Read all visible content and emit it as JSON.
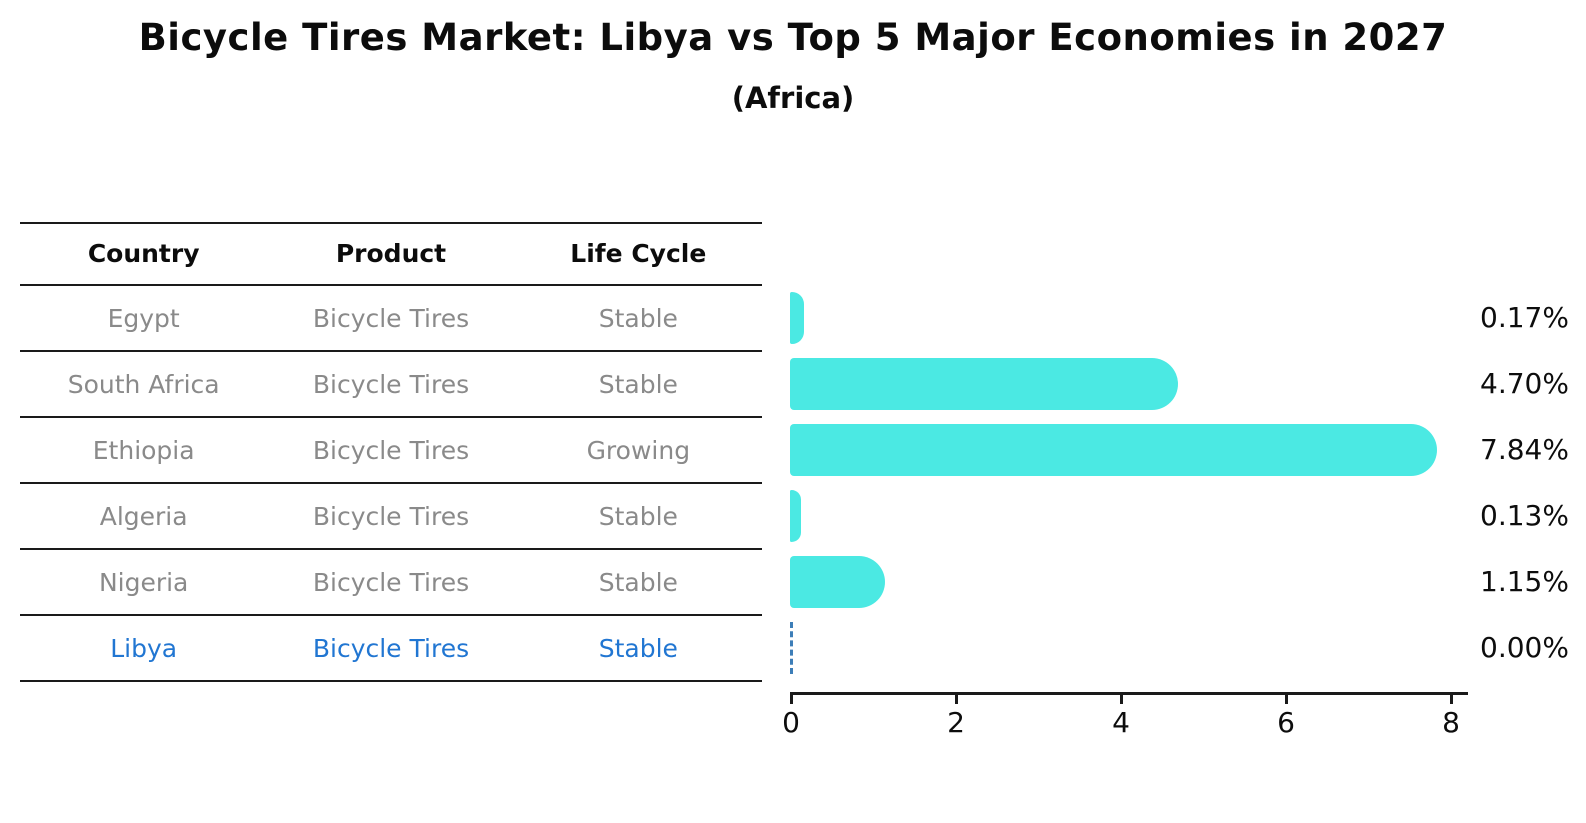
{
  "title": "Bicycle Tires Market: Libya vs Top 5 Major Economies in 2027",
  "subtitle": "(Africa)",
  "table": {
    "headers": {
      "country": "Country",
      "product": "Product",
      "life_cycle": "Life Cycle"
    },
    "rows": [
      {
        "country": "Egypt",
        "product": "Bicycle Tires",
        "life_cycle": "Stable"
      },
      {
        "country": "South Africa",
        "product": "Bicycle Tires",
        "life_cycle": "Stable"
      },
      {
        "country": "Ethiopia",
        "product": "Bicycle Tires",
        "life_cycle": "Growing"
      },
      {
        "country": "Algeria",
        "product": "Bicycle Tires",
        "life_cycle": "Stable"
      },
      {
        "country": "Nigeria",
        "product": "Bicycle Tires",
        "life_cycle": "Stable"
      },
      {
        "country": "Libya",
        "product": "Bicycle Tires",
        "life_cycle": "Stable"
      }
    ],
    "highlighted_row": "Libya"
  },
  "chart_data": {
    "type": "bar",
    "orientation": "horizontal",
    "title": "Bicycle Tires Market: Libya vs Top 5 Major Economies in 2027",
    "subtitle": "(Africa)",
    "categories": [
      "Egypt",
      "South Africa",
      "Ethiopia",
      "Algeria",
      "Nigeria",
      "Libya"
    ],
    "values": [
      0.17,
      4.7,
      7.84,
      0.13,
      1.15,
      0.0
    ],
    "value_labels": [
      "0.17%",
      "4.70%",
      "7.84%",
      "0.13%",
      "1.15%",
      "0.00%"
    ],
    "x_ticks": [
      "0",
      "2",
      "4",
      "6",
      "8"
    ],
    "xlim": [
      0,
      8
    ],
    "xlabel": "",
    "ylabel": "",
    "grid": false,
    "legend": "none",
    "bar_color": "#4be9e3",
    "highlight_color": "#2176d2",
    "zero_marker_style": "dashed-line"
  },
  "colors": {
    "bar": "#4be9e3",
    "highlight_text": "#2176d2",
    "zero_dash": "#3d7eb8",
    "table_text": "#8a8a8a",
    "header_text": "#0c0c0c",
    "line": "#1a1a1a"
  }
}
